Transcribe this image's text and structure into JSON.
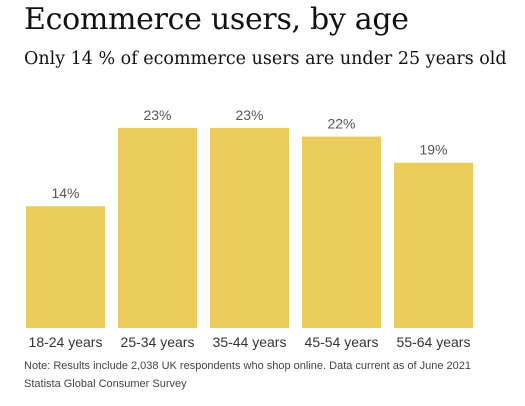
{
  "chart_data": {
    "type": "bar",
    "title": "Ecommerce users, by age",
    "subtitle": "Only 14 % of ecommerce users are under 25 years old",
    "categories": [
      "18-24 years",
      "25-34 years",
      "35-44 years",
      "45-54 years",
      "55-64 years"
    ],
    "values": [
      14,
      23,
      23,
      22,
      19
    ],
    "data_labels": [
      "14%",
      "23%",
      "23%",
      "22%",
      "19%"
    ],
    "xlabel": "",
    "ylabel": "",
    "grid": false,
    "bar_color": "#ebcc5a"
  },
  "footer": {
    "note": "Note: Results include 2,038 UK respondents who shop online. Data current as of June 2021",
    "source": "Statista Global Consumer Survey"
  }
}
